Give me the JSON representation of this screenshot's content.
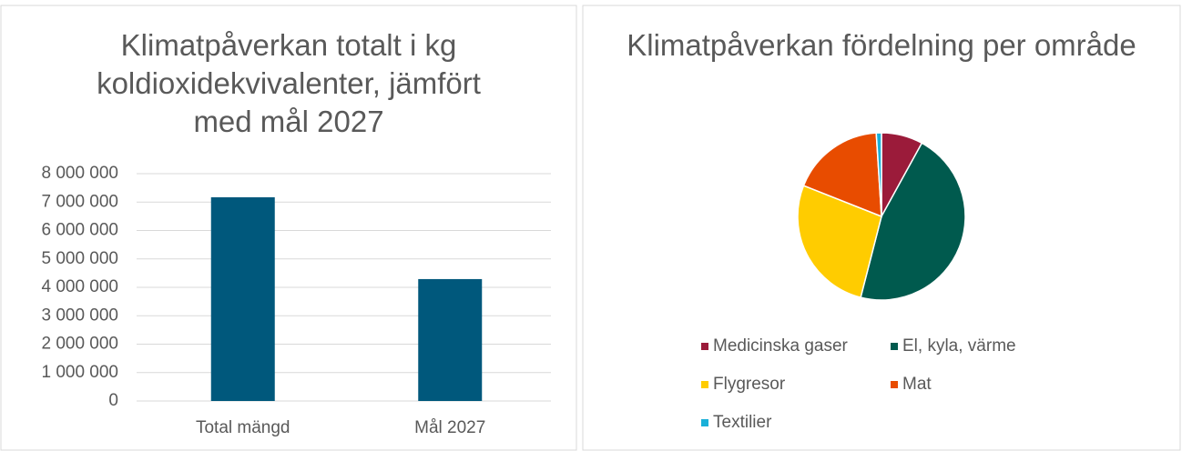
{
  "chart_data": [
    {
      "type": "bar",
      "title": "Klimatpåverkan totalt i kg koldioxidekvivalenter, jämfört med mål 2027",
      "categories": [
        "Total mängd",
        "Mål 2027"
      ],
      "values": [
        7170000,
        4290000
      ],
      "color": "#00587c",
      "ylim": [
        0,
        8000000
      ],
      "yticks": [
        0,
        {
          "value": 1000000,
          "label": "1 000 000"
        },
        {
          "value": 2000000,
          "label": "2 000 000"
        },
        {
          "value": 3000000,
          "label": "3 000 000"
        },
        {
          "value": 4000000,
          "label": "4 000 000"
        },
        {
          "value": 5000000,
          "label": "5 000 000"
        },
        {
          "value": 6000000,
          "label": "6 000 000"
        },
        {
          "value": 7000000,
          "label": "7 000 000"
        },
        {
          "value": 8000000,
          "label": "8 000 000"
        }
      ],
      "grid": true
    },
    {
      "type": "pie",
      "title": "Klimatpåverkan fördelning per område",
      "categories": [
        "Medicinska gaser",
        "El, kyla, värme",
        "Flygresor",
        "Mat",
        "Textilier"
      ],
      "values": [
        8,
        46,
        27,
        18,
        1
      ],
      "colors": [
        "#9b1b3a",
        "#005a4e",
        "#ffcc00",
        "#e84c00",
        "#1ab0d8"
      ],
      "legend": "bottom"
    }
  ]
}
